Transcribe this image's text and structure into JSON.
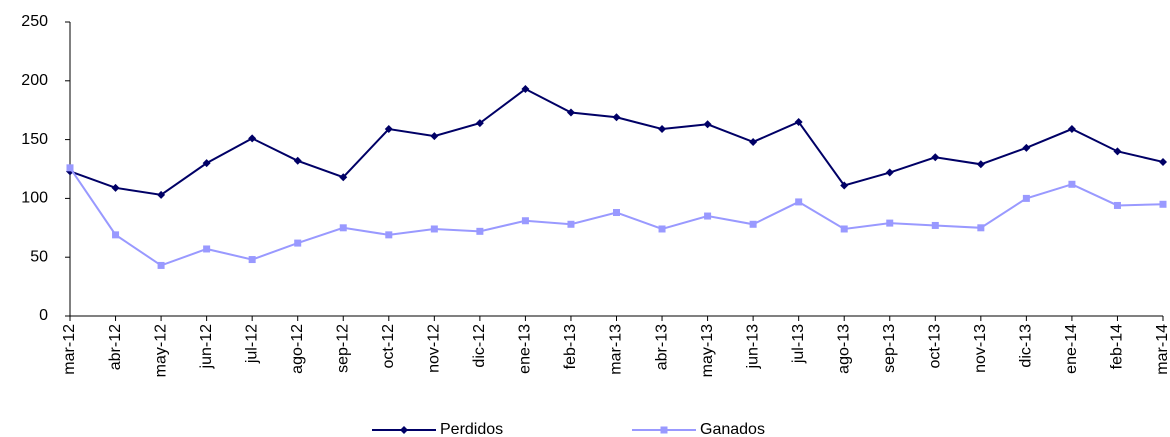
{
  "chart_data": {
    "type": "line",
    "categories": [
      "mar-12",
      "abr-12",
      "may-12",
      "jun-12",
      "jul-12",
      "ago-12",
      "sep-12",
      "oct-12",
      "nov-12",
      "dic-12",
      "ene-13",
      "feb-13",
      "mar-13",
      "abr-13",
      "may-13",
      "jun-13",
      "jul-13",
      "ago-13",
      "sep-13",
      "oct-13",
      "nov-13",
      "dic-13",
      "ene-14",
      "feb-14",
      "mar-14"
    ],
    "series": [
      {
        "name": "Perdidos",
        "color": "#000066",
        "marker": "diamond",
        "values": [
          123,
          109,
          103,
          130,
          151,
          132,
          118,
          159,
          153,
          164,
          193,
          173,
          169,
          159,
          163,
          148,
          165,
          111,
          122,
          135,
          129,
          143,
          159,
          140,
          131
        ]
      },
      {
        "name": "Ganados",
        "color": "#9999ff",
        "marker": "square",
        "values": [
          126,
          69,
          43,
          57,
          48,
          62,
          75,
          69,
          74,
          72,
          81,
          78,
          88,
          74,
          85,
          78,
          97,
          74,
          79,
          77,
          75,
          100,
          112,
          94,
          95
        ]
      }
    ],
    "ylim": [
      0,
      250
    ],
    "yticks": [
      0,
      50,
      100,
      150,
      200,
      250
    ],
    "grid": false,
    "legend": "bottom"
  }
}
